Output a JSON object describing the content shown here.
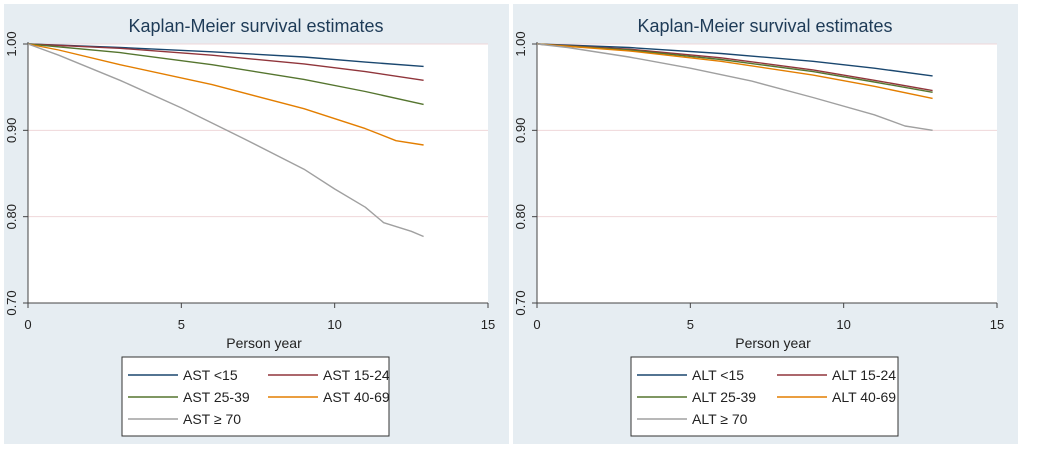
{
  "chart_data": [
    {
      "type": "line",
      "title": "Kaplan-Meier survival estimates",
      "xlabel": "Person year",
      "ylabel": "",
      "xlim": [
        0,
        15
      ],
      "ylim": [
        0.7,
        1.0
      ],
      "xticks": [
        "0",
        "5",
        "10",
        "15"
      ],
      "yticks": [
        "0.70",
        "0.80",
        "0.90",
        "1.00"
      ],
      "grid": true,
      "legend_position": "bottom",
      "series": [
        {
          "name": "AST <15",
          "color": "#1a476f",
          "x": [
            0,
            3,
            6,
            9,
            11,
            12.9
          ],
          "values": [
            1.0,
            0.996,
            0.991,
            0.985,
            0.979,
            0.974
          ]
        },
        {
          "name": "AST 15-24",
          "color": "#90353b",
          "x": [
            0,
            3,
            6,
            9,
            11,
            12.9
          ],
          "values": [
            1.0,
            0.995,
            0.987,
            0.977,
            0.968,
            0.958
          ]
        },
        {
          "name": "AST 25-39",
          "color": "#55752f",
          "x": [
            0,
            3,
            6,
            9,
            11,
            12.9
          ],
          "values": [
            1.0,
            0.99,
            0.976,
            0.959,
            0.945,
            0.93
          ]
        },
        {
          "name": "AST 40-69",
          "color": "#e37e00",
          "x": [
            0,
            1,
            3,
            6,
            9,
            11,
            12,
            12.9
          ],
          "values": [
            1.0,
            0.993,
            0.976,
            0.953,
            0.925,
            0.902,
            0.888,
            0.883
          ]
        },
        {
          "name": "AST ≥ 70",
          "color": "#a0a0a0",
          "x": [
            0,
            1,
            3,
            5,
            7,
            9,
            10,
            11,
            11.6,
            12.5,
            12.9
          ],
          "values": [
            1.0,
            0.987,
            0.958,
            0.926,
            0.891,
            0.855,
            0.832,
            0.811,
            0.793,
            0.783,
            0.777
          ]
        }
      ]
    },
    {
      "type": "line",
      "title": "Kaplan-Meier survival estimates",
      "xlabel": "Person year",
      "ylabel": "",
      "xlim": [
        0,
        15
      ],
      "ylim": [
        0.7,
        1.0
      ],
      "xticks": [
        "0",
        "5",
        "10",
        "15"
      ],
      "yticks": [
        "0.70",
        "0.80",
        "0.90",
        "1.00"
      ],
      "grid": true,
      "legend_position": "bottom",
      "series": [
        {
          "name": "ALT <15",
          "color": "#1a476f",
          "x": [
            0,
            3,
            6,
            9,
            11,
            12.9
          ],
          "values": [
            1.0,
            0.996,
            0.989,
            0.98,
            0.972,
            0.963
          ]
        },
        {
          "name": "ALT 15-24",
          "color": "#90353b",
          "x": [
            0,
            3,
            6,
            9,
            11,
            12.9
          ],
          "values": [
            1.0,
            0.994,
            0.984,
            0.97,
            0.958,
            0.946
          ]
        },
        {
          "name": "ALT 25-39",
          "color": "#55752f",
          "x": [
            0,
            3,
            6,
            9,
            11,
            12.9
          ],
          "values": [
            1.0,
            0.993,
            0.982,
            0.968,
            0.956,
            0.944
          ]
        },
        {
          "name": "ALT 40-69",
          "color": "#e37e00",
          "x": [
            0,
            3,
            6,
            9,
            11,
            12.9
          ],
          "values": [
            1.0,
            0.992,
            0.98,
            0.964,
            0.951,
            0.937
          ]
        },
        {
          "name": "ALT ≥ 70",
          "color": "#a0a0a0",
          "x": [
            0,
            1,
            3,
            5,
            7,
            9,
            11,
            12,
            12.9
          ],
          "values": [
            1.0,
            0.996,
            0.985,
            0.972,
            0.957,
            0.938,
            0.918,
            0.905,
            0.9
          ]
        }
      ]
    }
  ]
}
